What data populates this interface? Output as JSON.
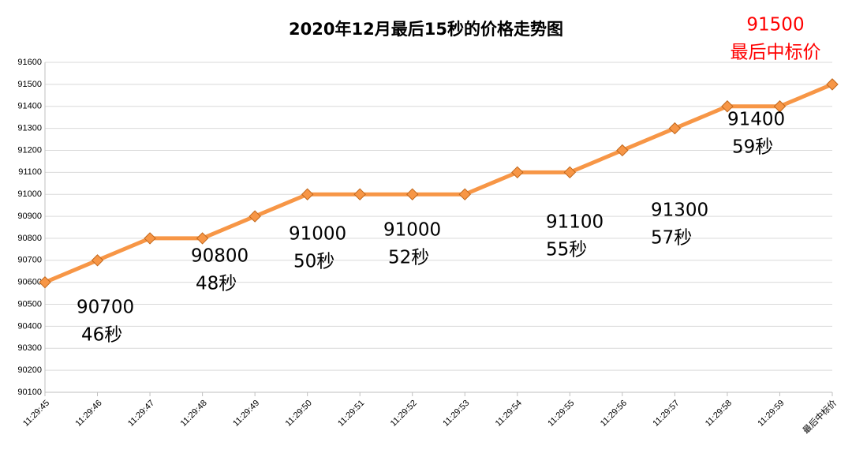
{
  "chart_data": {
    "type": "line",
    "title": "2020年12月最后15秒的价格走势图",
    "categories": [
      "11:29:45",
      "11:29:46",
      "11:29:47",
      "11:29:48",
      "11:29:49",
      "11:29:50",
      "11:29:51",
      "11:29:52",
      "11:29:53",
      "11:29:54",
      "11:29:55",
      "11:29:56",
      "11:29:57",
      "11:29:58",
      "11:29:59",
      "最后中标价"
    ],
    "series": [
      {
        "color": "#f79646",
        "values": [
          90600,
          90700,
          90800,
          90800,
          90900,
          91000,
          91000,
          91000,
          91000,
          91100,
          91100,
          91200,
          91300,
          91400,
          91400,
          91500
        ]
      }
    ],
    "ylim": [
      90100,
      91600
    ],
    "yticks": [
      90100,
      90200,
      90300,
      90400,
      90500,
      90600,
      90700,
      90800,
      90900,
      91000,
      91100,
      91200,
      91300,
      91400,
      91500,
      91600
    ],
    "grid": true,
    "annotations": [
      {
        "lines": [
          "90700",
          "46秒"
        ],
        "color": "#000000"
      },
      {
        "lines": [
          "90800",
          "48秒"
        ],
        "color": "#000000"
      },
      {
        "lines": [
          "91000",
          "50秒"
        ],
        "color": "#000000"
      },
      {
        "lines": [
          "91000",
          "52秒"
        ],
        "color": "#000000"
      },
      {
        "lines": [
          "91100",
          "55秒"
        ],
        "color": "#000000"
      },
      {
        "lines": [
          "91300",
          "57秒"
        ],
        "color": "#000000"
      },
      {
        "lines": [
          "91400",
          "59秒"
        ],
        "color": "#000000"
      },
      {
        "lines": [
          "91500",
          "最后中标价"
        ],
        "color": "#ff0000"
      }
    ]
  }
}
